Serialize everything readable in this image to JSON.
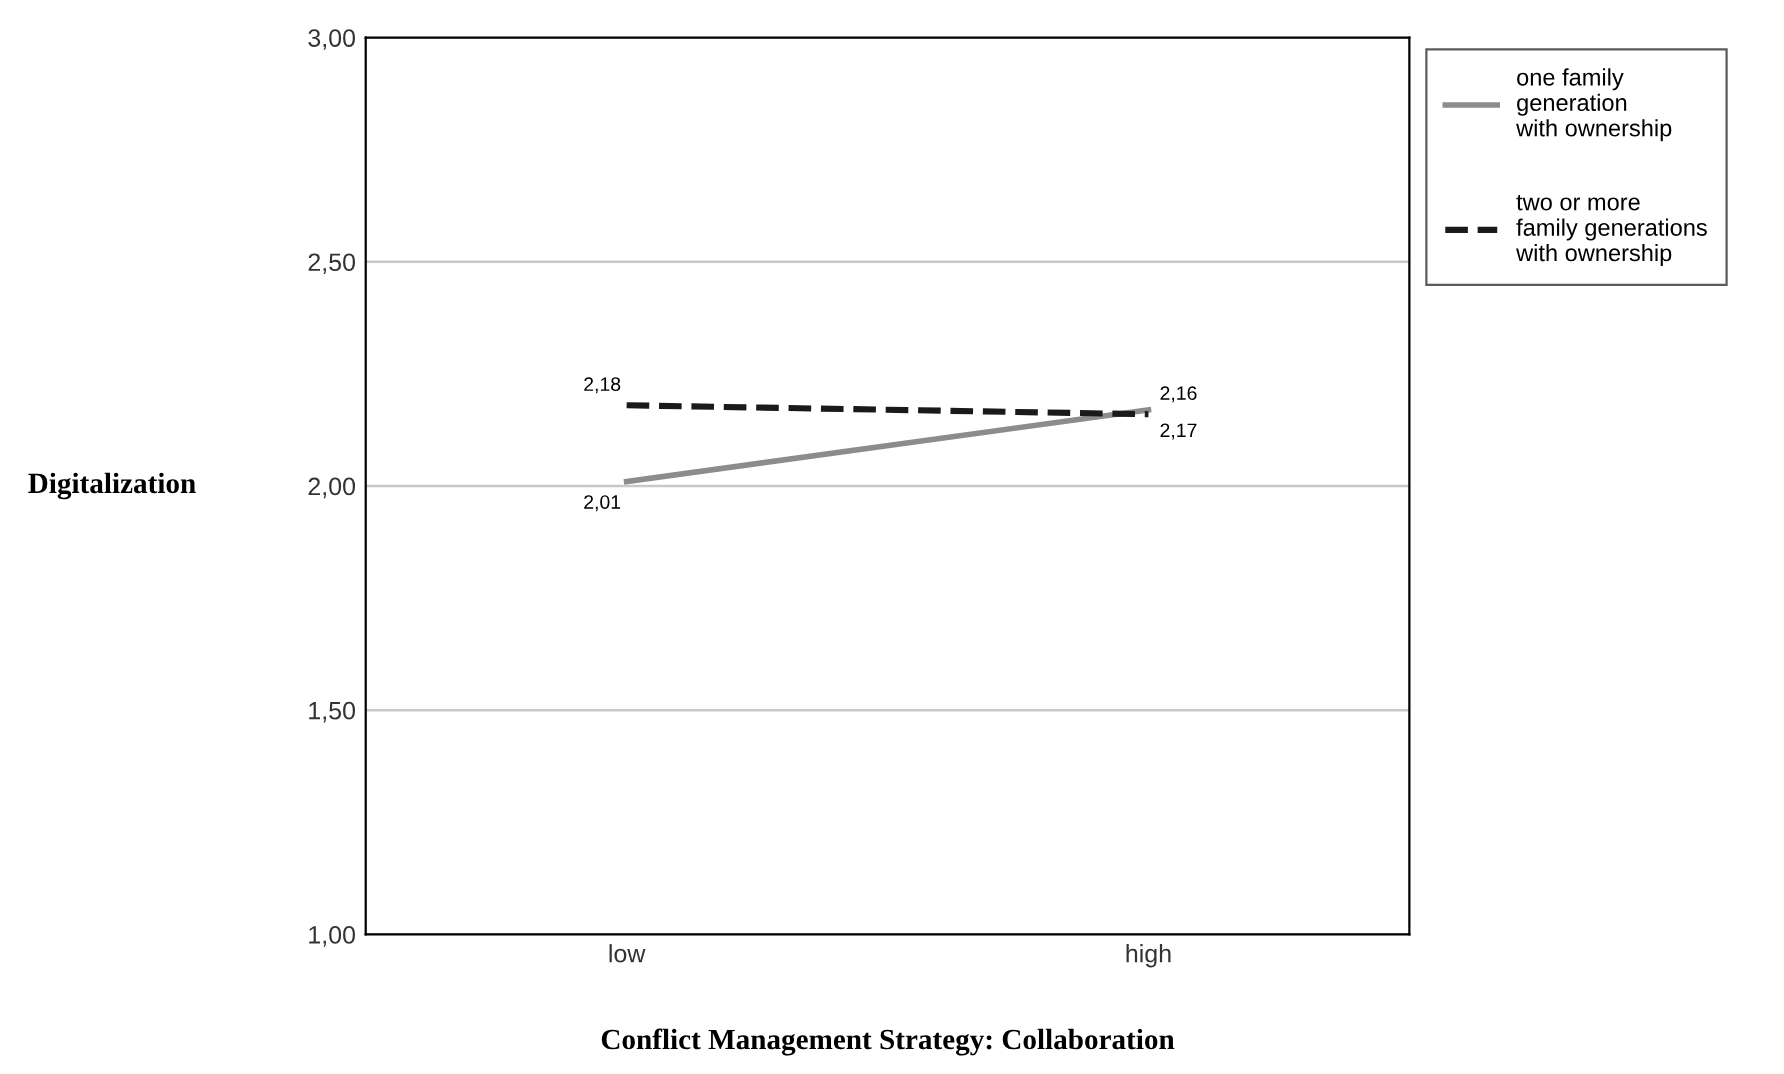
{
  "chart_data": {
    "type": "line",
    "xlabel": "Conflict Management Strategy: Collaboration",
    "ylabel": "Digitalization",
    "categories": [
      "low",
      "high"
    ],
    "series": [
      {
        "name": "one family generation with ownership",
        "color": "#8c8c8c",
        "line_style": "solid",
        "values": [
          2.01,
          2.17
        ],
        "value_labels": [
          "2,01",
          "2,17"
        ]
      },
      {
        "name": "two or more family generations with ownership",
        "color": "#1a1a1a",
        "line_style": "dashed",
        "values": [
          2.18,
          2.16
        ],
        "value_labels": [
          "2,18",
          "2,16"
        ]
      }
    ],
    "ylim": [
      1,
      3
    ],
    "yticks": [
      {
        "value": 1,
        "label": "1,00"
      },
      {
        "value": 1.5,
        "label": "1,50"
      },
      {
        "value": 2,
        "label": "2,00"
      },
      {
        "value": 2.5,
        "label": "2,50"
      },
      {
        "value": 3,
        "label": "3,00"
      }
    ],
    "grid": "y",
    "legend": "right",
    "marker": "none"
  }
}
